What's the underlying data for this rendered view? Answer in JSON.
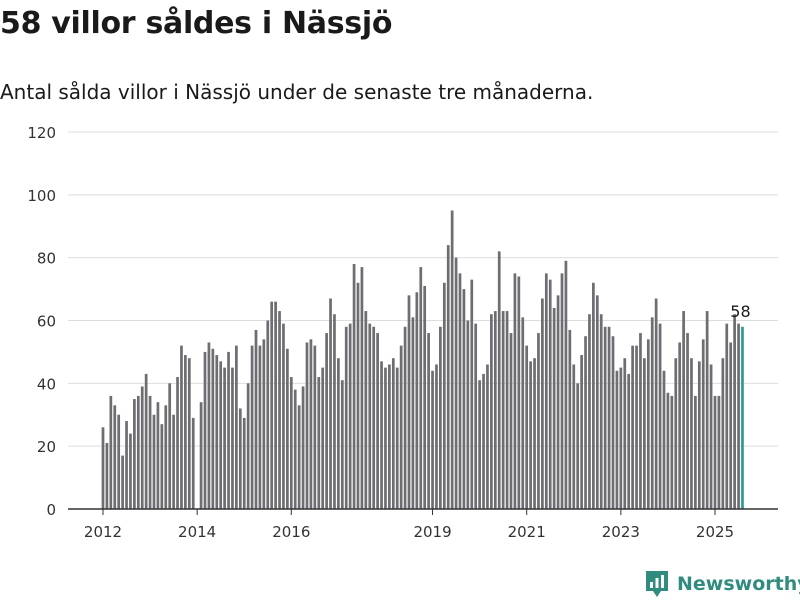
{
  "title": "58 villor såldes i Nässjö",
  "subtitle": "Antal sålda villor i Nässjö under de senaste tre månaderna.",
  "brand": {
    "name": "Newsworthy",
    "color": "#2f8c7f",
    "icon": "newsworthy-chart-logo"
  },
  "chart_data": {
    "type": "bar",
    "title": "58 villor såldes i Nässjö",
    "subtitle": "Antal sålda villor i Nässjö under de senaste tre månaderna.",
    "xlabel": "",
    "ylabel": "",
    "ylim": [
      0,
      120
    ],
    "y_ticks": [
      0,
      20,
      40,
      60,
      80,
      100,
      120
    ],
    "x_tick_labels": [
      "2012",
      "2014",
      "2016",
      "2019",
      "2021",
      "2023",
      "2025"
    ],
    "x_tick_periods": [
      "2012-01",
      "2014-01",
      "2016-01",
      "2019-01",
      "2021-01",
      "2023-01",
      "2025-01"
    ],
    "grid": "horizontal",
    "colors": {
      "bars": "#6e6d72",
      "highlight": "#2a9d8f",
      "grid": "#dddddd"
    },
    "highlight_label": "58",
    "periods": [
      "2012-01",
      "2012-02",
      "2012-03",
      "2012-04",
      "2012-05",
      "2012-06",
      "2012-07",
      "2012-08",
      "2012-09",
      "2012-10",
      "2012-11",
      "2012-12",
      "2013-01",
      "2013-02",
      "2013-03",
      "2013-04",
      "2013-05",
      "2013-06",
      "2013-07",
      "2013-08",
      "2013-09",
      "2013-10",
      "2013-11",
      "2013-12",
      "2014-01",
      "2014-02",
      "2014-03",
      "2014-04",
      "2014-05",
      "2014-06",
      "2014-07",
      "2014-08",
      "2014-09",
      "2014-10",
      "2014-11",
      "2014-12",
      "2015-01",
      "2015-02",
      "2015-03",
      "2015-04",
      "2015-05",
      "2015-06",
      "2015-07",
      "2015-08",
      "2015-09",
      "2015-10",
      "2015-11",
      "2015-12",
      "2016-01",
      "2016-02",
      "2016-03",
      "2016-04",
      "2016-05",
      "2016-06",
      "2016-07",
      "2016-08",
      "2016-09",
      "2016-10",
      "2016-11",
      "2016-12",
      "2017-01",
      "2017-02",
      "2017-03",
      "2017-04",
      "2017-05",
      "2017-06",
      "2017-07",
      "2017-08",
      "2017-09",
      "2017-10",
      "2017-11",
      "2017-12",
      "2018-01",
      "2018-02",
      "2018-03",
      "2018-04",
      "2018-05",
      "2018-06",
      "2018-07",
      "2018-08",
      "2018-09",
      "2018-10",
      "2018-11",
      "2018-12",
      "2019-01",
      "2019-02",
      "2019-03",
      "2019-04",
      "2019-05",
      "2019-06",
      "2019-07",
      "2019-08",
      "2019-09",
      "2019-10",
      "2019-11",
      "2019-12",
      "2020-01",
      "2020-02",
      "2020-03",
      "2020-04",
      "2020-05",
      "2020-06",
      "2020-07",
      "2020-08",
      "2020-09",
      "2020-10",
      "2020-11",
      "2020-12",
      "2021-01",
      "2021-02",
      "2021-03",
      "2021-04",
      "2021-05",
      "2021-06",
      "2021-07",
      "2021-08",
      "2021-09",
      "2021-10",
      "2021-11",
      "2021-12",
      "2022-01",
      "2022-02",
      "2022-03",
      "2022-04",
      "2022-05",
      "2022-06",
      "2022-07",
      "2022-08",
      "2022-09",
      "2022-10",
      "2022-11",
      "2022-12",
      "2023-01",
      "2023-02",
      "2023-03",
      "2023-04",
      "2023-05",
      "2023-06",
      "2023-07",
      "2023-08",
      "2023-09",
      "2023-10",
      "2023-11",
      "2023-12",
      "2024-01",
      "2024-02",
      "2024-03",
      "2024-04",
      "2024-05",
      "2024-06",
      "2024-07",
      "2024-08",
      "2024-09",
      "2024-10",
      "2024-11",
      "2024-12",
      "2025-01",
      "2025-02",
      "2025-03",
      "2025-04",
      "2025-05",
      "2025-06",
      "2025-07",
      "2025-08"
    ],
    "values": [
      26,
      21,
      36,
      33,
      30,
      17,
      28,
      24,
      35,
      36,
      39,
      43,
      36,
      30,
      34,
      27,
      33,
      40,
      30,
      42,
      52,
      49,
      48,
      29,
      null,
      34,
      50,
      53,
      51,
      49,
      47,
      45,
      50,
      45,
      52,
      32,
      29,
      40,
      52,
      57,
      52,
      54,
      60,
      66,
      66,
      63,
      59,
      51,
      42,
      38,
      33,
      39,
      53,
      54,
      52,
      42,
      45,
      56,
      67,
      62,
      48,
      41,
      58,
      59,
      78,
      72,
      77,
      63,
      59,
      58,
      56,
      47,
      45,
      46,
      48,
      45,
      52,
      58,
      68,
      61,
      69,
      77,
      71,
      56,
      44,
      46,
      58,
      72,
      84,
      95,
      80,
      75,
      70,
      60,
      73,
      59,
      41,
      43,
      46,
      62,
      63,
      82,
      63,
      63,
      56,
      75,
      74,
      61,
      52,
      47,
      48,
      56,
      67,
      75,
      73,
      64,
      68,
      75,
      79,
      57,
      46,
      40,
      49,
      55,
      62,
      72,
      68,
      62,
      58,
      58,
      55,
      44,
      45,
      48,
      43,
      52,
      52,
      56,
      48,
      54,
      61,
      67,
      59,
      44,
      37,
      36,
      48,
      53,
      63,
      56,
      48,
      36,
      47,
      54,
      63,
      46,
      36,
      36,
      48,
      59,
      53,
      62,
      59,
      58
    ]
  }
}
